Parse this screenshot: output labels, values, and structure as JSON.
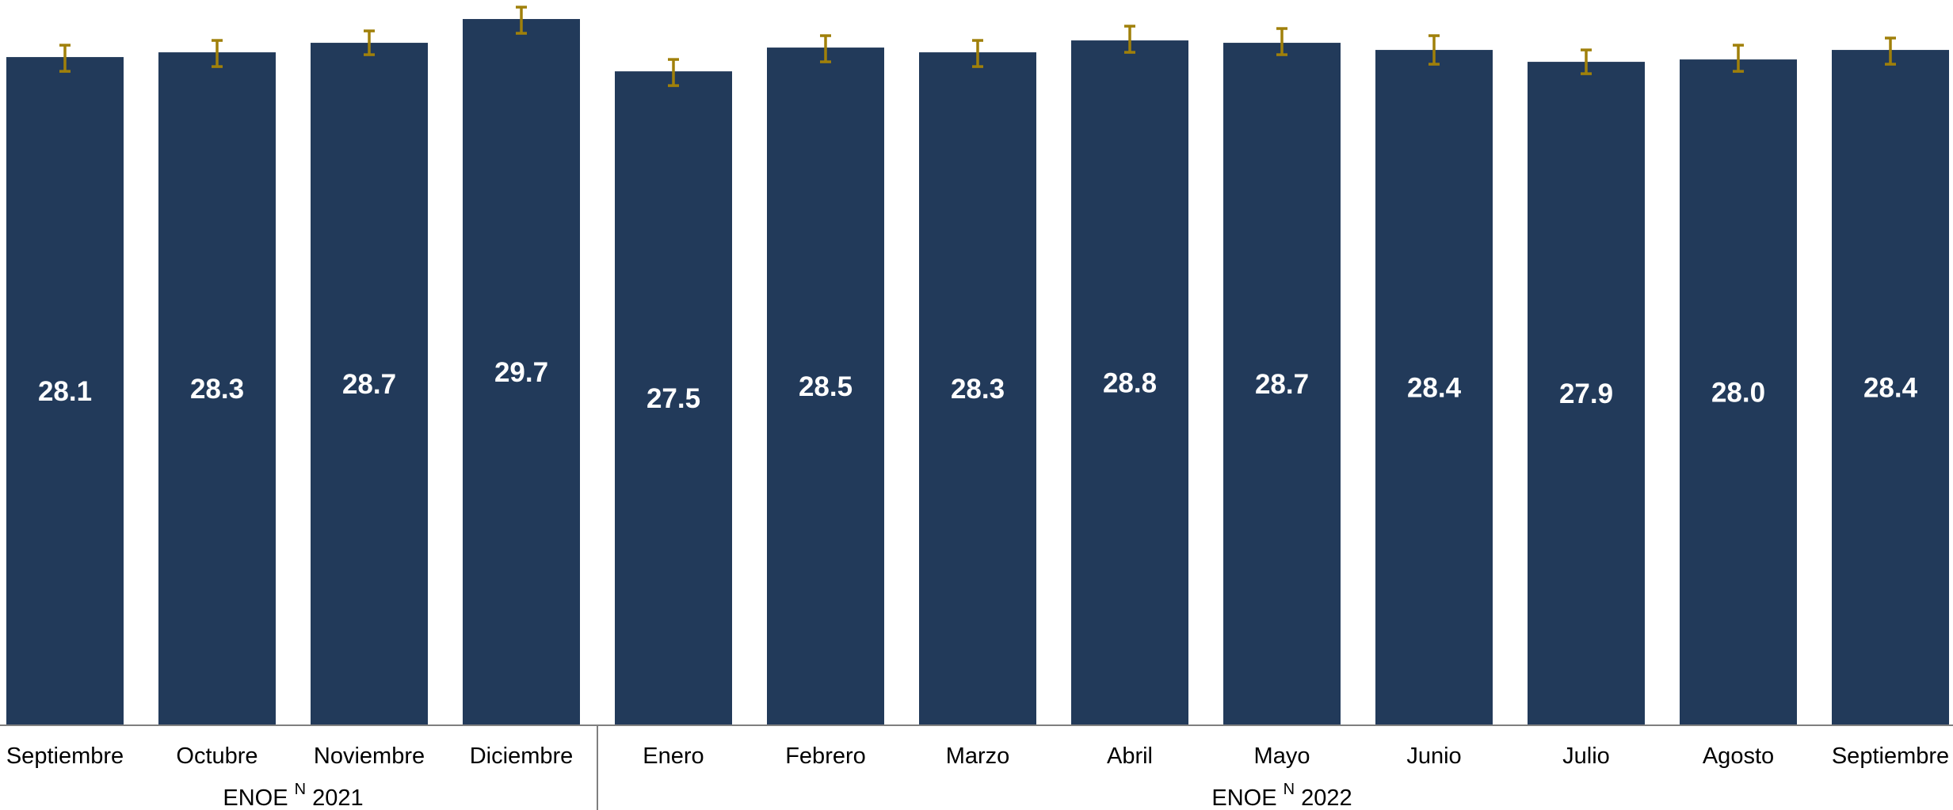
{
  "chart_data": {
    "type": "bar",
    "categories": [
      "Septiembre",
      "Octubre",
      "Noviembre",
      "Diciembre",
      "Enero",
      "Febrero",
      "Marzo",
      "Abril",
      "Mayo",
      "Junio",
      "Julio",
      "Agosto",
      "Septiembre"
    ],
    "values": [
      28.1,
      28.3,
      28.7,
      29.7,
      27.5,
      28.5,
      28.3,
      28.8,
      28.7,
      28.4,
      27.9,
      28.0,
      28.4
    ],
    "value_labels": [
      "28.1",
      "28.3",
      "28.7",
      "29.7",
      "27.5",
      "28.5",
      "28.3",
      "28.8",
      "28.7",
      "28.4",
      "27.9",
      "28.0",
      "28.4"
    ],
    "error_bars": [
      {
        "low": 27.5,
        "high": 28.6
      },
      {
        "low": 27.7,
        "high": 28.8
      },
      {
        "low": 28.2,
        "high": 29.2
      },
      {
        "low": 29.1,
        "high": 30.2
      },
      {
        "low": 26.9,
        "high": 28.0
      },
      {
        "low": 27.9,
        "high": 29.0
      },
      {
        "low": 27.7,
        "high": 28.8
      },
      {
        "low": 28.3,
        "high": 29.4
      },
      {
        "low": 28.2,
        "high": 29.3
      },
      {
        "low": 27.8,
        "high": 29.0
      },
      {
        "low": 27.4,
        "high": 28.4
      },
      {
        "low": 27.5,
        "high": 28.6
      },
      {
        "low": 27.8,
        "high": 28.9
      }
    ],
    "groups": [
      {
        "label": "ENOE",
        "superscript": "N",
        "year": "2021",
        "start": 0,
        "end": 3
      },
      {
        "label": "ENOE",
        "superscript": "N",
        "year": "2022",
        "start": 4,
        "end": 12
      }
    ],
    "title": "",
    "xlabel": "",
    "ylabel": "",
    "ylim": [
      0,
      30.5
    ],
    "grid": false,
    "legend": "none",
    "colors": {
      "bar": "#223a5a",
      "error_bar": "#a0800a",
      "bar_label": "#ffffff",
      "axis": "#7f7f7f",
      "text": "#000000"
    }
  }
}
